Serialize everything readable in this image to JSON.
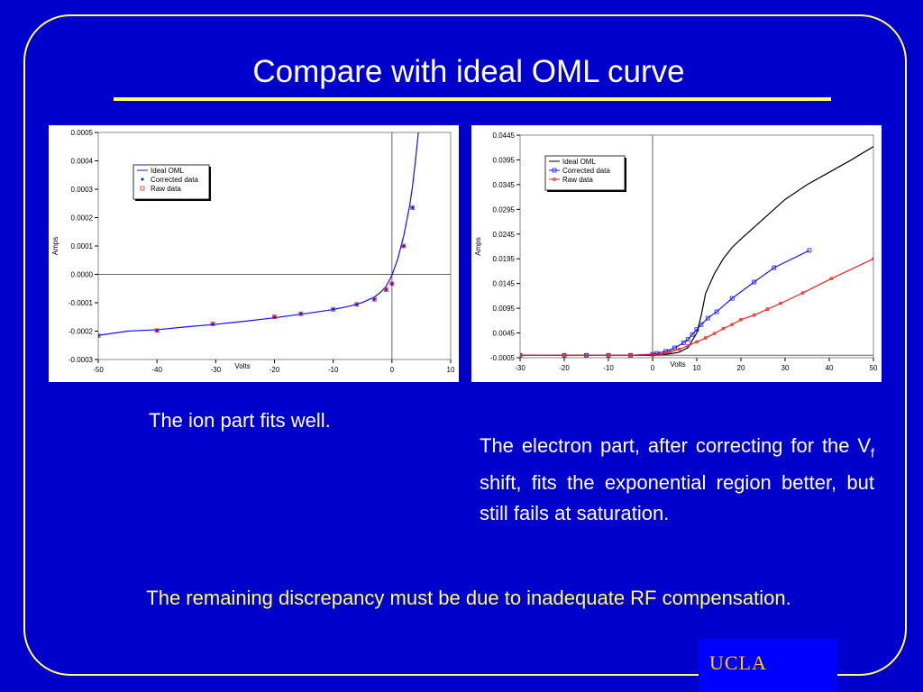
{
  "slide": {
    "title": "Compare with ideal OML curve",
    "caption_left": "The ion part fits well.",
    "caption_right_before_sub": "The electron part, after correcting for the V",
    "caption_right_sub": "f",
    "caption_right_after_sub": " shift, fits the exponential region better, but still fails at saturation.",
    "bottom_note": "The remaining discrepancy must be due to inadequate RF compensation.",
    "logo_text": "UCLA"
  },
  "colors": {
    "background": "#0000cc",
    "frame": "#ffff66",
    "title_rule": "#ffff66",
    "bottom_note": "#ffff66",
    "logo_box": "#0000ff",
    "logo_text": "#ffcc00"
  },
  "chart_data": [
    {
      "type": "line",
      "xlabel": "Volts",
      "ylabel": "Amps",
      "xlim": [
        -50,
        10
      ],
      "ylim": [
        -0.0003,
        0.0005
      ],
      "xticks": [
        "-50",
        "-40",
        "-30",
        "-20",
        "-10",
        "0",
        "10"
      ],
      "yticks": [
        "0.0005",
        "0.0004",
        "0.0003",
        "0.0002",
        "0.0001",
        "0.0000",
        "-0.0001",
        "-0.0002",
        "-0.0003"
      ],
      "legend_position": "top-left",
      "series": [
        {
          "name": "Ideal OML",
          "style": "line",
          "color": "#1010ee",
          "x": [
            -50,
            -45,
            -40,
            -35,
            -30,
            -25,
            -20,
            -15,
            -10,
            -7,
            -5,
            -3,
            -2,
            -1,
            0,
            1,
            2,
            3,
            3.5,
            4.0,
            4.5
          ],
          "y": [
            -0.000215,
            -0.0002,
            -0.000195,
            -0.000185,
            -0.000176,
            -0.000165,
            -0.000153,
            -0.000139,
            -0.000124,
            -0.000111,
            -9.9e-05,
            -8e-05,
            -6.4e-05,
            -4.3e-05,
            -3e-06,
            5.5e-05,
            0.000135,
            0.00024,
            0.00031,
            0.0004,
            0.0005
          ]
        },
        {
          "name": "Corrected data",
          "style": "marker-dot",
          "color": "#1010ee",
          "x": [
            -50,
            -40,
            -30.5,
            -20,
            -15.5,
            -10,
            -6,
            -3,
            -1,
            0,
            2,
            3.5
          ],
          "y": [
            -0.000216,
            -0.000198,
            -0.000175,
            -0.00015,
            -0.000139,
            -0.000123,
            -0.000106,
            -8.8e-05,
            -5.4e-05,
            -3.3e-05,
            0.0001,
            0.000235
          ]
        },
        {
          "name": "Raw data",
          "style": "marker-square",
          "color": "#ee2222",
          "x": [
            -50,
            -40,
            -30.5,
            -20,
            -15.5,
            -10,
            -6,
            -3,
            -1,
            0,
            2,
            3.5
          ],
          "y": [
            -0.000216,
            -0.000198,
            -0.000175,
            -0.00015,
            -0.000139,
            -0.000123,
            -0.000106,
            -8.8e-05,
            -5.4e-05,
            -3.3e-05,
            0.0001,
            0.000235
          ]
        }
      ]
    },
    {
      "type": "line",
      "xlabel": "Volts",
      "ylabel": "Amps",
      "xlim": [
        -30,
        50
      ],
      "ylim": [
        -0.0005,
        0.0445
      ],
      "xticks": [
        "-30",
        "-20",
        "-10",
        "0",
        "10",
        "20",
        "30",
        "40",
        "50"
      ],
      "yticks": [
        "0.0445",
        "0.0395",
        "0.0345",
        "0.0295",
        "0.0245",
        "0.0195",
        "0.0145",
        "0.0095",
        "0.0045",
        "-0.0005"
      ],
      "legend_position": "top-left",
      "series": [
        {
          "name": "Ideal OML",
          "style": "line",
          "color": "#000000",
          "x": [
            -30,
            -20,
            -10,
            0,
            2,
            4,
            6,
            8,
            10,
            11,
            12,
            14,
            16,
            18,
            20,
            25,
            30,
            35,
            40,
            45,
            50
          ],
          "y": [
            0,
            0,
            0,
            0,
            0.0001,
            0.0003,
            0.0006,
            0.0015,
            0.0045,
            0.008,
            0.0125,
            0.0165,
            0.0195,
            0.0218,
            0.0235,
            0.0275,
            0.0315,
            0.0345,
            0.037,
            0.0395,
            0.0422
          ]
        },
        {
          "name": "Corrected data",
          "style": "line-square",
          "color": "#1a1aee",
          "x": [
            -30,
            -20,
            -15,
            -10,
            -5,
            0,
            1,
            3,
            5,
            7,
            8,
            9,
            10,
            11,
            12.5,
            14.5,
            18,
            23,
            27.5,
            35.5
          ],
          "y": [
            0,
            0,
            0,
            0,
            0,
            0.0002,
            0.0004,
            0.0008,
            0.0015,
            0.0025,
            0.0032,
            0.0042,
            0.0052,
            0.0062,
            0.0075,
            0.0088,
            0.0115,
            0.0148,
            0.0177,
            0.0212
          ]
        },
        {
          "name": "Raw data",
          "style": "line-circle",
          "color": "#ee2222",
          "x": [
            -30,
            -20,
            -15,
            -10,
            -5,
            0,
            2,
            4,
            6,
            8,
            10,
            12,
            14,
            16,
            18,
            20,
            23,
            26,
            29,
            34,
            40.5,
            50
          ],
          "y": [
            0,
            0,
            0,
            0,
            0,
            0.0001,
            0.0003,
            0.0007,
            0.0012,
            0.0019,
            0.0027,
            0.0035,
            0.0044,
            0.0054,
            0.0062,
            0.0072,
            0.0081,
            0.0093,
            0.0105,
            0.0126,
            0.0155,
            0.0195
          ]
        }
      ]
    }
  ]
}
